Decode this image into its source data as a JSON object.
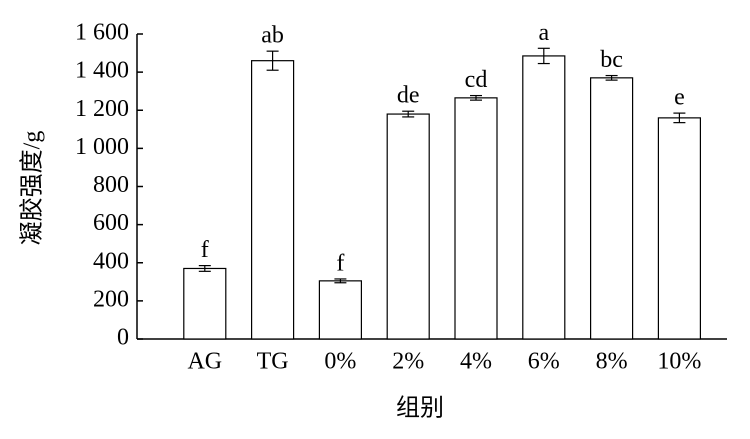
{
  "chart_data": {
    "type": "bar",
    "x_label": "组别",
    "y_label": "凝胶强度/g",
    "categories": [
      "AG",
      "TG",
      "0%",
      "2%",
      "4%",
      "6%",
      "8%",
      "10%"
    ],
    "values": [
      370,
      1460,
      305,
      1180,
      1265,
      1485,
      1370,
      1160
    ],
    "errors": [
      15,
      50,
      10,
      15,
      12,
      40,
      12,
      25
    ],
    "annotations": [
      "f",
      "ab",
      "f",
      "de",
      "cd",
      "a",
      "bc",
      "e"
    ],
    "color": "#ffffff",
    "ylim": [
      0,
      1600
    ],
    "yticks": [
      0,
      200,
      400,
      600,
      800,
      {
        "value": 1000,
        "label": "1 000"
      },
      {
        "value": 1200,
        "label": "1 200"
      },
      {
        "value": 1400,
        "label": "1 400"
      },
      {
        "value": 1600,
        "label": "1 600"
      }
    ]
  }
}
